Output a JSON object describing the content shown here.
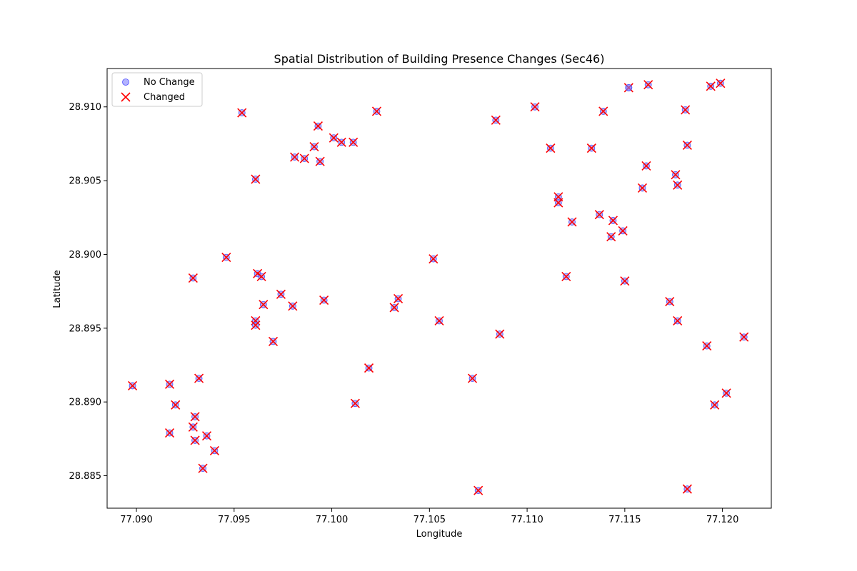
{
  "chart_data": {
    "type": "scatter",
    "title": "Spatial Distribution of Building Presence Changes (Sec46)",
    "xlabel": "Longitude",
    "ylabel": "Latitude",
    "xlim": [
      77.0885,
      77.1225
    ],
    "ylim": [
      28.8828,
      28.9126
    ],
    "x_ticks": [
      "77.090",
      "77.095",
      "77.100",
      "77.105",
      "77.110",
      "77.115",
      "77.120"
    ],
    "y_ticks": [
      "28.885",
      "28.890",
      "28.895",
      "28.900",
      "28.905",
      "28.910"
    ],
    "grid": false,
    "legend_position": "upper-left",
    "series": [
      {
        "name": "No Change",
        "marker": "circle",
        "color": "#8080ff",
        "points": [
          [
            77.1152,
            28.9113
          ]
        ]
      },
      {
        "name": "Changed",
        "marker": "x",
        "color": "#ff0000",
        "points": [
          [
            77.0954,
            28.9096
          ],
          [
            77.1023,
            28.9097
          ],
          [
            77.0993,
            28.9087
          ],
          [
            77.1001,
            28.9079
          ],
          [
            77.1005,
            28.9076
          ],
          [
            77.1011,
            28.9076
          ],
          [
            77.0991,
            28.9073
          ],
          [
            77.0981,
            28.9066
          ],
          [
            77.0986,
            28.9065
          ],
          [
            77.0994,
            28.9063
          ],
          [
            77.0961,
            28.9051
          ],
          [
            77.0946,
            28.8998
          ],
          [
            77.0929,
            28.8984
          ],
          [
            77.0962,
            28.8987
          ],
          [
            77.0964,
            28.8985
          ],
          [
            77.0974,
            28.8973
          ],
          [
            77.0965,
            28.8966
          ],
          [
            77.098,
            28.8965
          ],
          [
            77.0996,
            28.8969
          ],
          [
            77.0961,
            28.8955
          ],
          [
            77.0961,
            28.8952
          ],
          [
            77.097,
            28.8941
          ],
          [
            77.1034,
            28.897
          ],
          [
            77.1032,
            28.8964
          ],
          [
            77.1052,
            28.8997
          ],
          [
            77.1055,
            28.8955
          ],
          [
            77.0898,
            28.8911
          ],
          [
            77.0917,
            28.8912
          ],
          [
            77.092,
            28.8898
          ],
          [
            77.0932,
            28.8916
          ],
          [
            77.093,
            28.889
          ],
          [
            77.0929,
            28.8883
          ],
          [
            77.093,
            28.8874
          ],
          [
            77.0917,
            28.8879
          ],
          [
            77.0936,
            28.8877
          ],
          [
            77.094,
            28.8867
          ],
          [
            77.0934,
            28.8855
          ],
          [
            77.1019,
            28.8923
          ],
          [
            77.1012,
            28.8899
          ],
          [
            77.1072,
            28.8916
          ],
          [
            77.1075,
            28.884
          ],
          [
            77.1086,
            28.8946
          ],
          [
            77.1084,
            28.9091
          ],
          [
            77.1104,
            28.91
          ],
          [
            77.1112,
            28.9072
          ],
          [
            77.1133,
            28.9072
          ],
          [
            77.1139,
            28.9097
          ],
          [
            77.1152,
            28.9113
          ],
          [
            77.1162,
            28.9115
          ],
          [
            77.1181,
            28.9098
          ],
          [
            77.1194,
            28.9114
          ],
          [
            77.1199,
            28.9116
          ],
          [
            77.1182,
            28.9074
          ],
          [
            77.1161,
            28.906
          ],
          [
            77.1159,
            28.9045
          ],
          [
            77.1176,
            28.9054
          ],
          [
            77.1177,
            28.9047
          ],
          [
            77.1116,
            28.9039
          ],
          [
            77.1116,
            28.9035
          ],
          [
            77.1123,
            28.9022
          ],
          [
            77.1137,
            28.9027
          ],
          [
            77.1144,
            28.9023
          ],
          [
            77.1149,
            28.9016
          ],
          [
            77.1143,
            28.9012
          ],
          [
            77.112,
            28.8985
          ],
          [
            77.115,
            28.8982
          ],
          [
            77.1173,
            28.8968
          ],
          [
            77.1177,
            28.8955
          ],
          [
            77.1192,
            28.8938
          ],
          [
            77.1211,
            28.8944
          ],
          [
            77.1202,
            28.8906
          ],
          [
            77.1196,
            28.8898
          ],
          [
            77.1182,
            28.8841
          ]
        ]
      }
    ]
  }
}
